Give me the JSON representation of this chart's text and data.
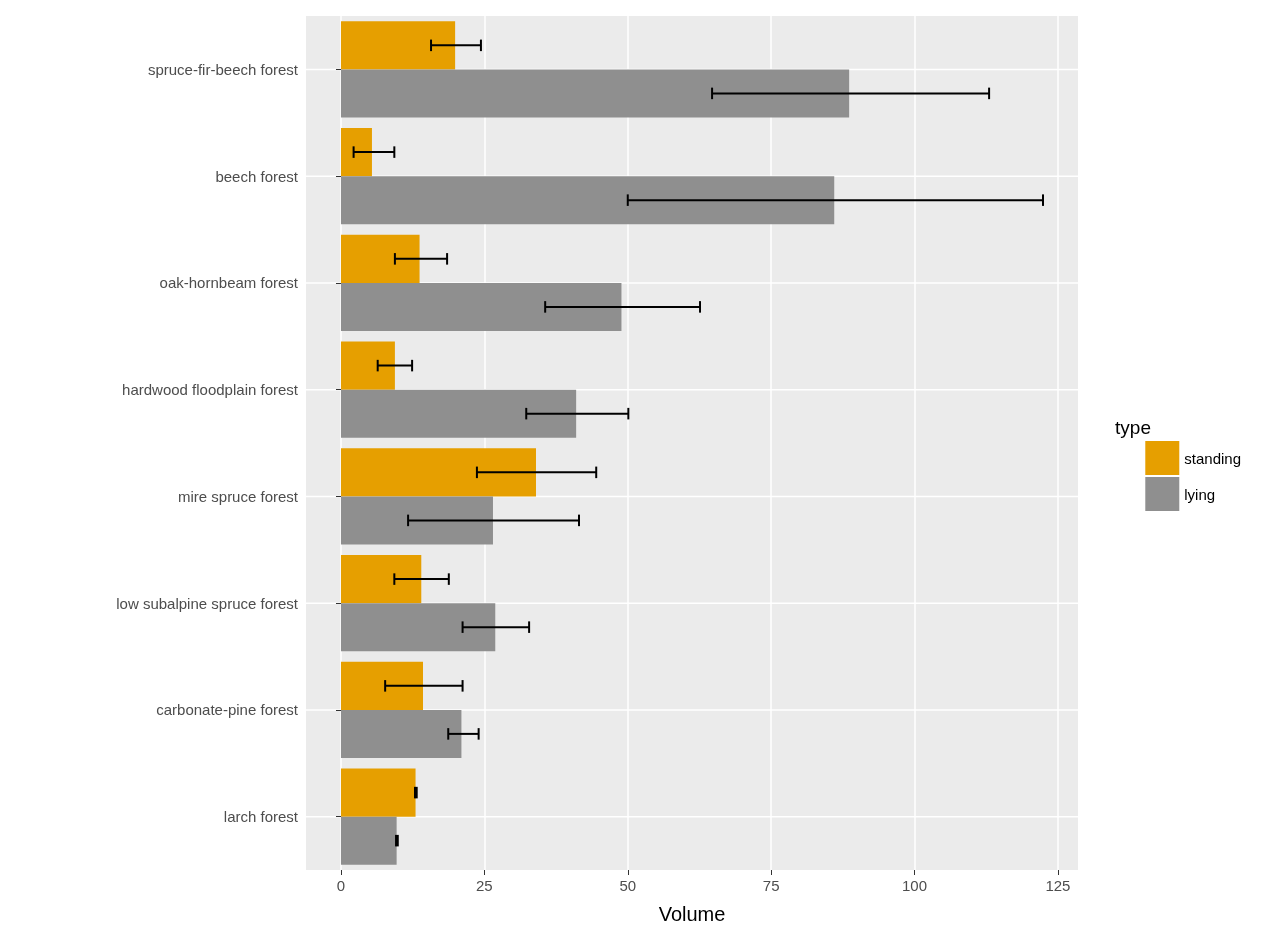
{
  "chart_data": {
    "type": "bar",
    "orientation": "horizontal",
    "xlabel": "Volume",
    "legend_title": "type",
    "legend": "right",
    "grid": true,
    "categories": [
      "spruce-fir-beech forest",
      "beech forest",
      "oak-hornbeam forest",
      "hardwood floodplain forest",
      "mire spruce forest",
      "low subalpine spruce forest",
      "carbonate-pine forest",
      "larch forest"
    ],
    "xlim": [
      -6.1,
      128.5
    ],
    "xticks": [
      0,
      25,
      50,
      75,
      100,
      125
    ],
    "series": [
      {
        "name": "standing",
        "color": "#e69f00",
        "values": [
          19.9,
          5.4,
          13.7,
          9.4,
          34.0,
          14.0,
          14.3,
          13.0
        ],
        "errors": [
          [
            15.7,
            24.4
          ],
          [
            2.2,
            9.3
          ],
          [
            9.4,
            18.5
          ],
          [
            6.4,
            12.4
          ],
          [
            23.7,
            44.5
          ],
          [
            9.3,
            18.8
          ],
          [
            7.7,
            21.2
          ],
          [
            12.9,
            13.2
          ]
        ]
      },
      {
        "name": "lying",
        "color": "#8f8f8f",
        "values": [
          88.6,
          86.0,
          48.9,
          41.0,
          26.5,
          26.9,
          21.0,
          9.7
        ],
        "errors": [
          [
            64.7,
            113.0
          ],
          [
            50.0,
            122.4
          ],
          [
            35.6,
            62.6
          ],
          [
            32.3,
            50.1
          ],
          [
            11.7,
            41.5
          ],
          [
            21.2,
            32.8
          ],
          [
            18.7,
            24.0
          ],
          [
            9.6,
            9.9
          ]
        ]
      }
    ]
  }
}
